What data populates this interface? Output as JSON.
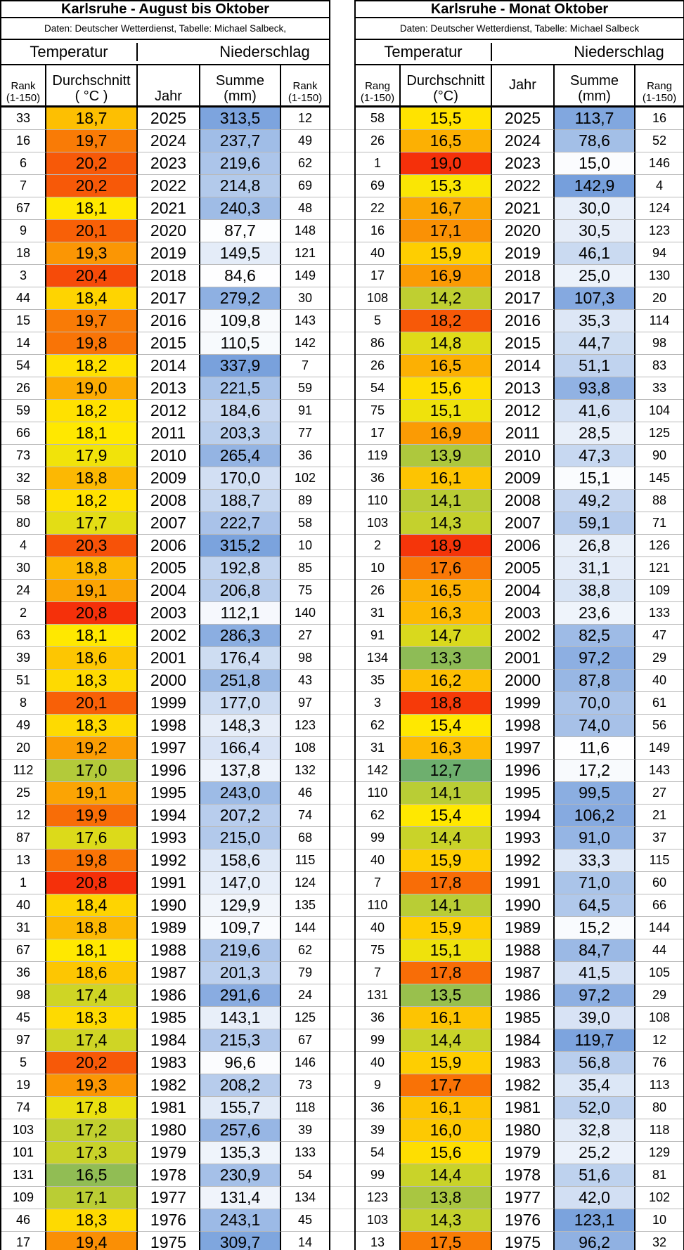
{
  "chart_data": [
    {
      "type": "table",
      "title": "Karlsruhe - August bis Oktober",
      "subtitle": "Daten: Deutscher Wetterdienst, Tabelle: Michael Salbeck,",
      "group_temperature": "Temperatur",
      "group_precipitation": "Niederschlag",
      "columns": {
        "rank_temp_l1": "Rank",
        "rank_temp_l2": "(1-150)",
        "avg_l1": "Durchschnitt",
        "avg_l2": "( °C )",
        "year": "Jahr",
        "sum_l1": "Summe",
        "sum_l2": "(mm)",
        "rank_precip_l1": "Rank",
        "rank_precip_l2": "(1-150)"
      },
      "temp_scale": {
        "min": 16.0,
        "mid": 18.1,
        "max": 20.8,
        "color_low": "#6EAF6E",
        "color_mid": "#FFE800",
        "color_high": "#F5300A"
      },
      "precip_scale": {
        "rank_min": 1,
        "rank_max": 150,
        "color_wet": "#739DDB",
        "color_dry": "#FFFFFF"
      },
      "rows": [
        [
          33,
          "18,7",
          2025,
          "313,5",
          12
        ],
        [
          16,
          "19,7",
          2024,
          "237,7",
          49
        ],
        [
          6,
          "20,2",
          2023,
          "219,6",
          62
        ],
        [
          7,
          "20,2",
          2022,
          "214,8",
          69
        ],
        [
          67,
          "18,1",
          2021,
          "240,3",
          48
        ],
        [
          9,
          "20,1",
          2020,
          "87,7",
          148
        ],
        [
          18,
          "19,3",
          2019,
          "149,5",
          121
        ],
        [
          3,
          "20,4",
          2018,
          "84,6",
          149
        ],
        [
          44,
          "18,4",
          2017,
          "279,2",
          30
        ],
        [
          15,
          "19,7",
          2016,
          "109,8",
          143
        ],
        [
          14,
          "19,8",
          2015,
          "110,5",
          142
        ],
        [
          54,
          "18,2",
          2014,
          "337,9",
          7
        ],
        [
          26,
          "19,0",
          2013,
          "221,5",
          59
        ],
        [
          59,
          "18,2",
          2012,
          "184,6",
          91
        ],
        [
          66,
          "18,1",
          2011,
          "203,3",
          77
        ],
        [
          73,
          "17,9",
          2010,
          "265,4",
          36
        ],
        [
          32,
          "18,8",
          2009,
          "170,0",
          102
        ],
        [
          58,
          "18,2",
          2008,
          "188,7",
          89
        ],
        [
          80,
          "17,7",
          2007,
          "222,7",
          58
        ],
        [
          4,
          "20,3",
          2006,
          "315,2",
          10
        ],
        [
          30,
          "18,8",
          2005,
          "192,8",
          85
        ],
        [
          24,
          "19,1",
          2004,
          "206,8",
          75
        ],
        [
          2,
          "20,8",
          2003,
          "112,1",
          140
        ],
        [
          63,
          "18,1",
          2002,
          "286,3",
          27
        ],
        [
          39,
          "18,6",
          2001,
          "176,4",
          98
        ],
        [
          51,
          "18,3",
          2000,
          "251,8",
          43
        ],
        [
          8,
          "20,1",
          1999,
          "177,0",
          97
        ],
        [
          49,
          "18,3",
          1998,
          "148,3",
          123
        ],
        [
          20,
          "19,2",
          1997,
          "166,4",
          108
        ],
        [
          112,
          "17,0",
          1996,
          "137,8",
          132
        ],
        [
          25,
          "19,1",
          1995,
          "243,0",
          46
        ],
        [
          12,
          "19,9",
          1994,
          "207,2",
          74
        ],
        [
          87,
          "17,6",
          1993,
          "215,0",
          68
        ],
        [
          13,
          "19,8",
          1992,
          "158,6",
          115
        ],
        [
          1,
          "20,8",
          1991,
          "147,0",
          124
        ],
        [
          40,
          "18,4",
          1990,
          "129,9",
          135
        ],
        [
          31,
          "18,8",
          1989,
          "109,7",
          144
        ],
        [
          67,
          "18,1",
          1988,
          "219,6",
          62
        ],
        [
          36,
          "18,6",
          1987,
          "201,3",
          79
        ],
        [
          98,
          "17,4",
          1986,
          "291,6",
          24
        ],
        [
          45,
          "18,3",
          1985,
          "143,1",
          125
        ],
        [
          97,
          "17,4",
          1984,
          "215,3",
          67
        ],
        [
          5,
          "20,2",
          1983,
          "96,6",
          146
        ],
        [
          19,
          "19,3",
          1982,
          "208,2",
          73
        ],
        [
          74,
          "17,8",
          1981,
          "155,7",
          118
        ],
        [
          103,
          "17,2",
          1980,
          "257,6",
          39
        ],
        [
          101,
          "17,3",
          1979,
          "135,3",
          133
        ],
        [
          131,
          "16,5",
          1978,
          "230,9",
          54
        ],
        [
          109,
          "17,1",
          1977,
          "131,4",
          134
        ],
        [
          46,
          "18,3",
          1976,
          "243,1",
          45
        ],
        [
          17,
          "19,4",
          1975,
          "309,7",
          14
        ]
      ]
    },
    {
      "type": "table",
      "title": "Karlsruhe - Monat Oktober",
      "subtitle": "Daten: Deutscher Wetterdienst, Tabelle: Michael Salbeck",
      "group_temperature": "Temperatur",
      "group_precipitation": "Niederschlag",
      "columns": {
        "rank_temp_l1": "Rang",
        "rank_temp_l2": "(1-150)",
        "avg_l1": "Durchschnitt",
        "avg_l2": "(°C)",
        "year": "Jahr",
        "sum_l1": "Summe",
        "sum_l2": "(mm)",
        "rank_precip_l1": "Rang",
        "rank_precip_l2": "(1-150)"
      },
      "temp_scale": {
        "min": 12.7,
        "mid": 15.4,
        "max": 19.0,
        "color_low": "#6EAF6E",
        "color_mid": "#FFE800",
        "color_high": "#F5300A"
      },
      "precip_scale": {
        "rank_min": 1,
        "rank_max": 150,
        "color_wet": "#739DDB",
        "color_dry": "#FFFFFF"
      },
      "rows": [
        [
          58,
          "15,5",
          2025,
          "113,7",
          16
        ],
        [
          26,
          "16,5",
          2024,
          "78,6",
          52
        ],
        [
          1,
          "19,0",
          2023,
          "15,0",
          146
        ],
        [
          69,
          "15,3",
          2022,
          "142,9",
          4
        ],
        [
          22,
          "16,7",
          2021,
          "30,0",
          124
        ],
        [
          16,
          "17,1",
          2020,
          "30,5",
          123
        ],
        [
          40,
          "15,9",
          2019,
          "46,1",
          94
        ],
        [
          17,
          "16,9",
          2018,
          "25,0",
          130
        ],
        [
          108,
          "14,2",
          2017,
          "107,3",
          20
        ],
        [
          5,
          "18,2",
          2016,
          "35,3",
          114
        ],
        [
          86,
          "14,8",
          2015,
          "44,7",
          98
        ],
        [
          26,
          "16,5",
          2014,
          "51,1",
          83
        ],
        [
          54,
          "15,6",
          2013,
          "93,8",
          33
        ],
        [
          75,
          "15,1",
          2012,
          "41,6",
          104
        ],
        [
          17,
          "16,9",
          2011,
          "28,5",
          125
        ],
        [
          119,
          "13,9",
          2010,
          "47,3",
          90
        ],
        [
          36,
          "16,1",
          2009,
          "15,1",
          145
        ],
        [
          110,
          "14,1",
          2008,
          "49,2",
          88
        ],
        [
          103,
          "14,3",
          2007,
          "59,1",
          71
        ],
        [
          2,
          "18,9",
          2006,
          "26,8",
          126
        ],
        [
          10,
          "17,6",
          2005,
          "31,1",
          121
        ],
        [
          26,
          "16,5",
          2004,
          "38,8",
          109
        ],
        [
          31,
          "16,3",
          2003,
          "23,6",
          133
        ],
        [
          91,
          "14,7",
          2002,
          "82,5",
          47
        ],
        [
          134,
          "13,3",
          2001,
          "97,2",
          29
        ],
        [
          35,
          "16,2",
          2000,
          "87,8",
          40
        ],
        [
          3,
          "18,8",
          1999,
          "70,0",
          61
        ],
        [
          62,
          "15,4",
          1998,
          "74,0",
          56
        ],
        [
          31,
          "16,3",
          1997,
          "11,6",
          149
        ],
        [
          142,
          "12,7",
          1996,
          "17,2",
          143
        ],
        [
          110,
          "14,1",
          1995,
          "99,5",
          27
        ],
        [
          62,
          "15,4",
          1994,
          "106,2",
          21
        ],
        [
          99,
          "14,4",
          1993,
          "91,0",
          37
        ],
        [
          40,
          "15,9",
          1992,
          "33,3",
          115
        ],
        [
          7,
          "17,8",
          1991,
          "71,0",
          60
        ],
        [
          110,
          "14,1",
          1990,
          "64,5",
          66
        ],
        [
          40,
          "15,9",
          1989,
          "15,2",
          144
        ],
        [
          75,
          "15,1",
          1988,
          "84,7",
          44
        ],
        [
          7,
          "17,8",
          1987,
          "41,5",
          105
        ],
        [
          131,
          "13,5",
          1986,
          "97,2",
          29
        ],
        [
          36,
          "16,1",
          1985,
          "39,0",
          108
        ],
        [
          99,
          "14,4",
          1984,
          "119,7",
          12
        ],
        [
          40,
          "15,9",
          1983,
          "56,8",
          76
        ],
        [
          9,
          "17,7",
          1982,
          "35,4",
          113
        ],
        [
          36,
          "16,1",
          1981,
          "52,0",
          80
        ],
        [
          39,
          "16,0",
          1980,
          "32,8",
          118
        ],
        [
          54,
          "15,6",
          1979,
          "25,2",
          129
        ],
        [
          99,
          "14,4",
          1978,
          "51,6",
          81
        ],
        [
          123,
          "13,8",
          1977,
          "42,0",
          102
        ],
        [
          103,
          "14,3",
          1976,
          "123,1",
          10
        ],
        [
          13,
          "17,5",
          1975,
          "96,2",
          32
        ]
      ]
    }
  ]
}
